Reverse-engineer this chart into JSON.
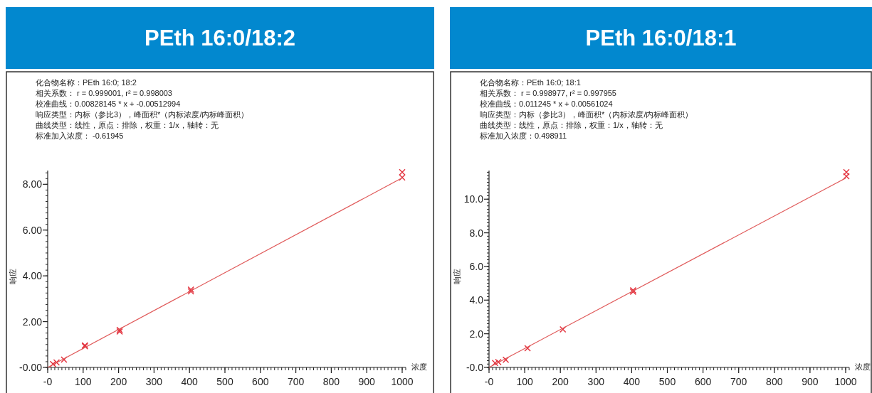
{
  "chart_data": [
    {
      "type": "scatter",
      "title": "PEth 16:0/18:2",
      "annotations": [
        "化合物名称：PEth 16:0; 18:2",
        "相关系数： r = 0.999001, r² = 0.998003",
        "校准曲线：0.00828145 * x + -0.00512994",
        "响应类型：内标（参比3），峰面积*（内标浓度/内标峰面积）",
        "曲线类型：线性，原点：排除，权重：1/x，轴转：无",
        "标准加入浓度： -0.61945"
      ],
      "xlabel": "浓度",
      "ylabel": "响应",
      "xlim": [
        0,
        1010
      ],
      "ylim": [
        0,
        8.6
      ],
      "xticks": [
        {
          "value": 0,
          "label": "-0"
        },
        100,
        200,
        300,
        400,
        500,
        600,
        700,
        800,
        900,
        1000
      ],
      "yticks": [
        {
          "value": 0,
          "label": "-0.00"
        },
        {
          "value": 2,
          "label": "2.00"
        },
        {
          "value": 4,
          "label": "4.00"
        },
        {
          "value": 6,
          "label": "6.00"
        },
        {
          "value": 8,
          "label": "8.00"
        }
      ],
      "series": [
        {
          "marker": "cross",
          "color": "#e3303c",
          "x": [
            15,
            25,
            46,
            105,
            105,
            203,
            203,
            404,
            404,
            1000,
            1000
          ],
          "values": [
            0.15,
            0.22,
            0.34,
            0.96,
            0.92,
            1.64,
            1.57,
            3.4,
            3.32,
            8.53,
            8.3
          ]
        },
        {
          "type": "line",
          "color": "#e05a5a",
          "x": [
            0,
            1000
          ],
          "values": [
            0.0,
            8.28
          ]
        }
      ]
    },
    {
      "type": "scatter",
      "title": "PEth 16:0/18:1",
      "annotations": [
        "化合物名称：PEth 16:0; 18:1",
        "相关系数： r = 0.998977, r² = 0.997955",
        "校准曲线：0.011245 * x + 0.00561024",
        "响应类型：内标（参比3），峰面积*（内标浓度/内标峰面积）",
        "曲线类型：线性，原点：排除，权重：1/x，轴转：无",
        "标准加入浓度：0.498911"
      ],
      "xlabel": "浓度",
      "ylabel": "响应",
      "xlim": [
        0,
        1010
      ],
      "ylim": [
        0,
        11.7
      ],
      "xticks": [
        {
          "value": 0,
          "label": "-0"
        },
        100,
        200,
        300,
        400,
        500,
        600,
        700,
        800,
        900,
        1000
      ],
      "yticks": [
        {
          "value": 0,
          "label": "-0.0"
        },
        {
          "value": 2,
          "label": "2.0"
        },
        {
          "value": 4,
          "label": "4.0"
        },
        {
          "value": 6,
          "label": "6.0"
        },
        {
          "value": 8,
          "label": "8.0"
        },
        {
          "value": 10,
          "label": "10.0"
        }
      ],
      "series": [
        {
          "marker": "cross",
          "color": "#e3303c",
          "x": [
            17,
            26,
            47,
            108,
            207,
            404,
            404,
            1002,
            1002
          ],
          "values": [
            0.26,
            0.32,
            0.45,
            1.14,
            2.26,
            4.5,
            4.58,
            11.6,
            11.36
          ]
        },
        {
          "type": "line",
          "color": "#e05a5a",
          "x": [
            0,
            1000
          ],
          "values": [
            0.0,
            11.25
          ]
        }
      ]
    }
  ]
}
